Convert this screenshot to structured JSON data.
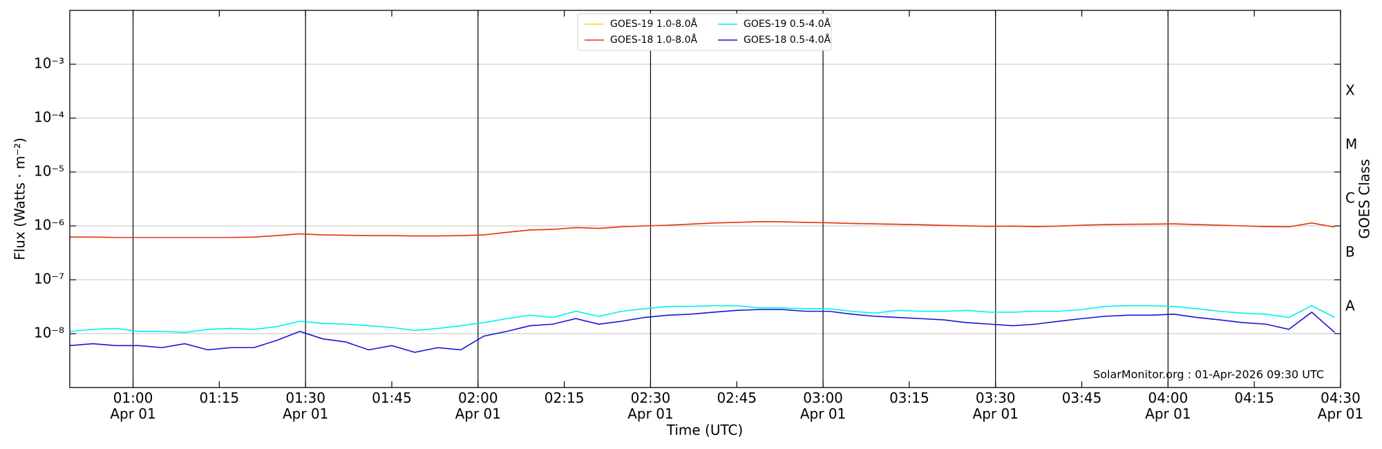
{
  "chart_data": {
    "type": "line",
    "xlabel": "Time (UTC)",
    "ylabel": "Flux (Watts · m⁻²)",
    "y2label": "GOES Class",
    "annotation": "SolarMonitor.org : 01-Apr-2026 09:30 UTC",
    "log_y": true,
    "grid": true,
    "x_grid_minutes": 30,
    "legend": "top",
    "xlim": [
      "00:49",
      "04:30"
    ],
    "ylim": [
      1e-09,
      0.01
    ],
    "yticks": [
      {
        "value": 1e-08,
        "label": "10⁻⁸"
      },
      {
        "value": 1e-07,
        "label": "10⁻⁷"
      },
      {
        "value": 1e-06,
        "label": "10⁻⁶"
      },
      {
        "value": 1e-05,
        "label": "10⁻⁵"
      },
      {
        "value": 0.0001,
        "label": "10⁻⁴"
      },
      {
        "value": 0.001,
        "label": "10⁻³"
      }
    ],
    "xticks": [
      {
        "value": "01:00",
        "label": "01:00\nApr 01"
      },
      {
        "value": "01:15",
        "label": "01:15"
      },
      {
        "value": "01:30",
        "label": "01:30\nApr 01"
      },
      {
        "value": "01:45",
        "label": "01:45"
      },
      {
        "value": "02:00",
        "label": "02:00\nApr 01"
      },
      {
        "value": "02:15",
        "label": "02:15"
      },
      {
        "value": "02:30",
        "label": "02:30\nApr 01"
      },
      {
        "value": "02:45",
        "label": "02:45"
      },
      {
        "value": "03:00",
        "label": "03:00\nApr 01"
      },
      {
        "value": "03:15",
        "label": "03:15"
      },
      {
        "value": "03:30",
        "label": "03:30\nApr 01"
      },
      {
        "value": "03:45",
        "label": "03:45"
      },
      {
        "value": "04:00",
        "label": "04:00\nApr 01"
      },
      {
        "value": "04:15",
        "label": "04:15"
      },
      {
        "value": "04:30",
        "label": "04:30\nApr 01"
      }
    ],
    "y2_classes": [
      {
        "label": "A",
        "value": 1e-08
      },
      {
        "label": "B",
        "value": 1e-07
      },
      {
        "label": "C",
        "value": 1e-06
      },
      {
        "label": "M",
        "value": 1e-05
      },
      {
        "label": "X",
        "value": 0.0001
      }
    ],
    "x": [
      "00:49",
      "00:53",
      "00:57",
      "01:01",
      "01:05",
      "01:09",
      "01:13",
      "01:17",
      "01:21",
      "01:25",
      "01:29",
      "01:33",
      "01:37",
      "01:41",
      "01:45",
      "01:49",
      "01:53",
      "01:57",
      "02:01",
      "02:05",
      "02:09",
      "02:13",
      "02:17",
      "02:21",
      "02:25",
      "02:29",
      "02:33",
      "02:37",
      "02:41",
      "02:45",
      "02:49",
      "02:53",
      "02:57",
      "03:01",
      "03:05",
      "03:09",
      "03:13",
      "03:17",
      "03:21",
      "03:25",
      "03:29",
      "03:33",
      "03:37",
      "03:41",
      "03:45",
      "03:49",
      "03:53",
      "03:57",
      "04:01",
      "04:05",
      "04:09",
      "04:13",
      "04:17",
      "04:21",
      "04:25",
      "04:29"
    ],
    "series": [
      {
        "name": "GOES-19 1.0-8.0Å",
        "color": "#ffd700",
        "values": [
          6.2e-07,
          6.2e-07,
          6.1e-07,
          6.1e-07,
          6.1e-07,
          6.1e-07,
          6.1e-07,
          6.1e-07,
          6.2e-07,
          6.6e-07,
          7.1e-07,
          6.8e-07,
          6.7e-07,
          6.6e-07,
          6.6e-07,
          6.5e-07,
          6.5e-07,
          6.6e-07,
          6.8e-07,
          7.6e-07,
          8.4e-07,
          8.6e-07,
          9.3e-07,
          9e-07,
          9.6e-07,
          1e-06,
          1.03e-06,
          1.08e-06,
          1.13e-06,
          1.16e-06,
          1.2e-06,
          1.19e-06,
          1.16e-06,
          1.14e-06,
          1.11e-06,
          1.09e-06,
          1.07e-06,
          1.05e-06,
          1.02e-06,
          1e-06,
          9.8e-07,
          9.9e-07,
          9.7e-07,
          9.9e-07,
          1.03e-06,
          1.06e-06,
          1.07e-06,
          1.08e-06,
          1.09e-06,
          1.06e-06,
          1.03e-06,
          1e-06,
          9.7e-07,
          9.6e-07,
          1.13e-06,
          9.5e-07
        ]
      },
      {
        "name": "GOES-18 1.0-8.0Å",
        "color": "#e8301c",
        "values": [
          6.2e-07,
          6.2e-07,
          6.1e-07,
          6.1e-07,
          6.1e-07,
          6.1e-07,
          6.1e-07,
          6.1e-07,
          6.2e-07,
          6.6e-07,
          7.1e-07,
          6.8e-07,
          6.7e-07,
          6.6e-07,
          6.6e-07,
          6.5e-07,
          6.5e-07,
          6.6e-07,
          6.8e-07,
          7.6e-07,
          8.4e-07,
          8.6e-07,
          9.3e-07,
          9e-07,
          9.6e-07,
          1e-06,
          1.03e-06,
          1.08e-06,
          1.13e-06,
          1.16e-06,
          1.2e-06,
          1.19e-06,
          1.16e-06,
          1.14e-06,
          1.11e-06,
          1.09e-06,
          1.07e-06,
          1.05e-06,
          1.02e-06,
          1e-06,
          9.8e-07,
          9.9e-07,
          9.7e-07,
          9.9e-07,
          1.03e-06,
          1.06e-06,
          1.07e-06,
          1.08e-06,
          1.09e-06,
          1.06e-06,
          1.03e-06,
          1e-06,
          9.7e-07,
          9.6e-07,
          1.13e-06,
          9.5e-07
        ]
      },
      {
        "name": "GOES-19 0.5-4.0Å",
        "color": "#00f0f0",
        "values": [
          1.1e-08,
          1.2e-08,
          1.25e-08,
          1.1e-08,
          1.1e-08,
          1.05e-08,
          1.2e-08,
          1.25e-08,
          1.2e-08,
          1.35e-08,
          1.7e-08,
          1.55e-08,
          1.5e-08,
          1.4e-08,
          1.3e-08,
          1.15e-08,
          1.25e-08,
          1.4e-08,
          1.6e-08,
          1.9e-08,
          2.2e-08,
          2e-08,
          2.6e-08,
          2.1e-08,
          2.6e-08,
          2.9e-08,
          3.2e-08,
          3.2e-08,
          3.3e-08,
          3.3e-08,
          3e-08,
          3e-08,
          2.9e-08,
          2.9e-08,
          2.6e-08,
          2.4e-08,
          2.7e-08,
          2.6e-08,
          2.6e-08,
          2.7e-08,
          2.5e-08,
          2.5e-08,
          2.6e-08,
          2.6e-08,
          2.8e-08,
          3.2e-08,
          3.3e-08,
          3.3e-08,
          3.2e-08,
          2.9e-08,
          2.6e-08,
          2.4e-08,
          2.3e-08,
          2e-08,
          3.3e-08,
          2e-08
        ]
      },
      {
        "name": "GOES-18 0.5-4.0Å",
        "color": "#1414d8",
        "values": [
          6e-09,
          6.5e-09,
          6e-09,
          6e-09,
          5.5e-09,
          6.5e-09,
          5e-09,
          5.5e-09,
          5.5e-09,
          7.5e-09,
          1.1e-08,
          8e-09,
          7e-09,
          5e-09,
          6e-09,
          4.5e-09,
          5.5e-09,
          5e-09,
          9e-09,
          1.1e-08,
          1.4e-08,
          1.5e-08,
          1.9e-08,
          1.5e-08,
          1.7e-08,
          2e-08,
          2.2e-08,
          2.3e-08,
          2.5e-08,
          2.7e-08,
          2.8e-08,
          2.8e-08,
          2.6e-08,
          2.6e-08,
          2.3e-08,
          2.1e-08,
          2e-08,
          1.9e-08,
          1.8e-08,
          1.6e-08,
          1.5e-08,
          1.4e-08,
          1.5e-08,
          1.7e-08,
          1.9e-08,
          2.1e-08,
          2.2e-08,
          2.2e-08,
          2.3e-08,
          2e-08,
          1.8e-08,
          1.6e-08,
          1.5e-08,
          1.2e-08,
          2.5e-08,
          1.05e-08
        ]
      }
    ]
  }
}
